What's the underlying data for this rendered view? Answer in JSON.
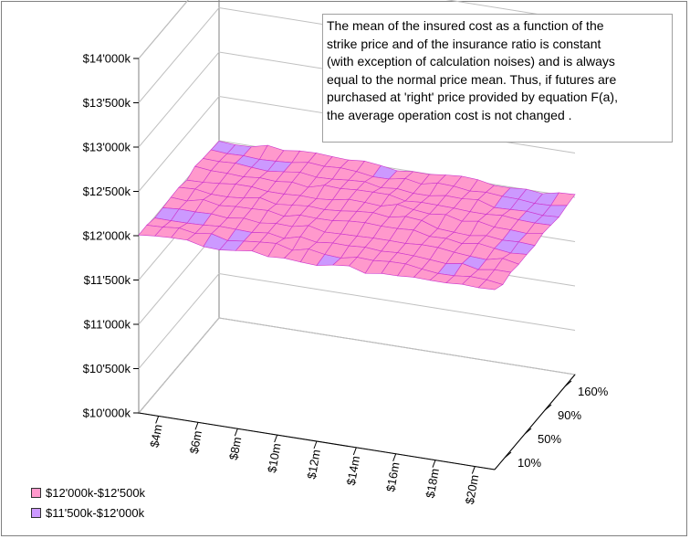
{
  "chart_data": {
    "type": "surface-3d",
    "annotation": [
      "The mean of the insured cost as a function of the",
      "strike price and of the insurance ratio is constant",
      "(with exception of calculation noises) and is always",
      "equal to the normal price mean. Thus, if futures are",
      "purchased at 'right' price provided by equation F(a),",
      "the average operation cost is not changed ."
    ],
    "z_ticks": [
      "$10'000k",
      "$10'500k",
      "$11'000k",
      "$11'500k",
      "$12'000k",
      "$12'500k",
      "$13'000k",
      "$13'500k",
      "$14'000k"
    ],
    "zlim": [
      10000,
      14000
    ],
    "x_ticks": [
      "$4m",
      "$6m",
      "$8m",
      "$10m",
      "$12m",
      "$14m",
      "$16m",
      "$18m",
      "$20m"
    ],
    "xlim": [
      4,
      20
    ],
    "y_ticks": [
      "10%",
      "50%",
      "90%",
      "160%"
    ],
    "z_mean": 12000,
    "z_noise_range": [
      11950,
      12150
    ],
    "legend": [
      {
        "label": "$12'000k-$12'500k",
        "color": "#ff99cc"
      },
      {
        "label": "$11'500k-$12'000k",
        "color": "#cc99ff"
      }
    ],
    "grid": true,
    "legend_position": "bottom-left"
  }
}
